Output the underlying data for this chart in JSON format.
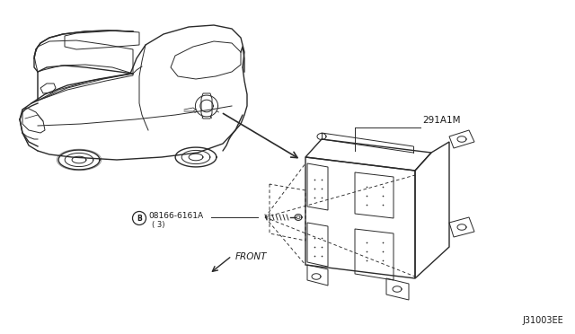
{
  "background_color": "#ffffff",
  "diagram_id": "J31003EE",
  "part_label_1": "291A1M",
  "part_label_2": "08166-6161A",
  "part_label_2b": "( 3)",
  "front_label": "FRONT",
  "text_color": "#1a1a1a",
  "line_color": "#2a2a2a",
  "fig_width": 6.4,
  "fig_height": 3.72,
  "dpi": 100
}
